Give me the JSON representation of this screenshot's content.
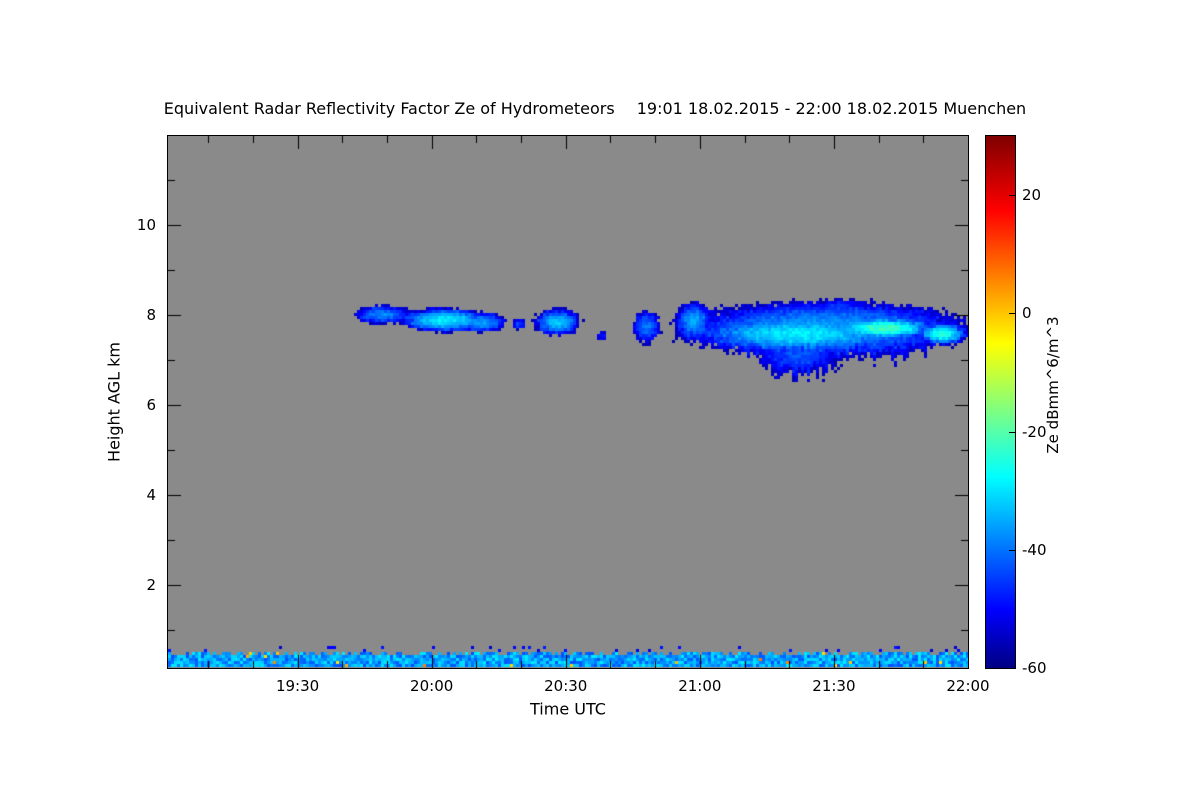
{
  "chart_data": {
    "type": "heatmap",
    "title": "Equivalent Radar Reflectivity Factor Ze of Hydrometeors",
    "subtitle": "19:01 18.02.2015 - 22:00 18.02.2015 Muenchen",
    "xlabel": "Time UTC",
    "ylabel": "Height AGL km",
    "colorbar_label": "Ze dBmm^6/m^3",
    "x_unit": "minutes after 19:00 UTC",
    "x_range_minutes": [
      1,
      180
    ],
    "y_range_km": [
      0.15,
      11.98
    ],
    "background_color": "#8A8A8A",
    "x_ticks": [
      {
        "label": "19:30",
        "t": 30
      },
      {
        "label": "20:00",
        "t": 60
      },
      {
        "label": "20:30",
        "t": 90
      },
      {
        "label": "21:00",
        "t": 120
      },
      {
        "label": "21:30",
        "t": 150
      },
      {
        "label": "22:00",
        "t": 180
      }
    ],
    "x_minor_step_min": 10,
    "y_ticks": [
      {
        "label": "2",
        "h": 2
      },
      {
        "label": "4",
        "h": 4
      },
      {
        "label": "6",
        "h": 6
      },
      {
        "label": "8",
        "h": 8
      },
      {
        "label": "10",
        "h": 10
      }
    ],
    "y_minor_ticks_km": [
      1,
      3,
      5,
      7,
      9,
      11
    ],
    "colorbar": {
      "range": [
        -60,
        30
      ],
      "ticks": [
        {
          "label": "20",
          "v": 20
        },
        {
          "label": "0",
          "v": 0
        },
        {
          "label": "-20",
          "v": -20
        },
        {
          "label": "-40",
          "v": -40
        },
        {
          "label": "-60",
          "v": -60
        }
      ],
      "stops": [
        {
          "pos": 0.0,
          "color": "#000082"
        },
        {
          "pos": 0.11,
          "color": "#0000FF"
        },
        {
          "pos": 0.36,
          "color": "#00FFFF"
        },
        {
          "pos": 0.61,
          "color": "#FFFF00"
        },
        {
          "pos": 0.86,
          "color": "#FF0000"
        },
        {
          "pos": 1.0,
          "color": "#7F0000"
        }
      ]
    },
    "features": {
      "description": "Elevated ice-cloud echo band near 7-8.4 km AGL from ~19:43 to 22:00 UTC with gaps; strongest (green, ~-20 dB) core 21:25-21:55; ragged fall streaks below cloud base ~21:10-21:30; shallow boundary-layer echo band ~0.2-0.55 km across whole period.",
      "cloud_blobs": [
        {
          "t_center_min": 49,
          "h_center_km": 8.02,
          "t_radius_min": 6.5,
          "h_radius_km": 0.22,
          "core_dbz": -38,
          "streak": 0
        },
        {
          "t_center_min": 63,
          "h_center_km": 7.9,
          "t_radius_min": 11,
          "h_radius_km": 0.28,
          "core_dbz": -29,
          "streak": 0
        },
        {
          "t_center_min": 71,
          "h_center_km": 7.85,
          "t_radius_min": 6,
          "h_radius_km": 0.24,
          "core_dbz": -36,
          "streak": 0
        },
        {
          "t_center_min": 79.5,
          "h_center_km": 7.82,
          "t_radius_min": 1.6,
          "h_radius_km": 0.14,
          "core_dbz": -44,
          "streak": 0
        },
        {
          "t_center_min": 88,
          "h_center_km": 7.85,
          "t_radius_min": 5.5,
          "h_radius_km": 0.32,
          "core_dbz": -33,
          "streak": 0
        },
        {
          "t_center_min": 98,
          "h_center_km": 7.55,
          "t_radius_min": 1.1,
          "h_radius_km": 0.12,
          "core_dbz": -47,
          "streak": 0
        },
        {
          "t_center_min": 108,
          "h_center_km": 7.75,
          "t_radius_min": 3.4,
          "h_radius_km": 0.38,
          "core_dbz": -40,
          "streak": 0
        },
        {
          "t_center_min": 118.5,
          "h_center_km": 7.9,
          "t_radius_min": 4.5,
          "h_radius_km": 0.42,
          "core_dbz": -36,
          "streak": 0.4
        },
        {
          "t_center_min": 148,
          "h_center_km": 7.75,
          "t_radius_min": 33,
          "h_radius_km": 0.6,
          "core_dbz": -36,
          "streak": 0.5
        },
        {
          "t_center_min": 142,
          "h_center_km": 7.6,
          "t_radius_min": 26,
          "h_radius_km": 0.4,
          "core_dbz": -29,
          "streak": 0.3
        },
        {
          "t_center_min": 161,
          "h_center_km": 7.72,
          "t_radius_min": 12,
          "h_radius_km": 0.26,
          "core_dbz": -21,
          "streak": 0
        },
        {
          "t_center_min": 174,
          "h_center_km": 7.6,
          "t_radius_min": 6,
          "h_radius_km": 0.26,
          "core_dbz": -25,
          "streak": 0
        },
        {
          "t_center_min": 151,
          "h_center_km": 8.2,
          "t_radius_min": 5,
          "h_radius_km": 0.18,
          "core_dbz": -45,
          "streak": 0
        },
        {
          "t_center_min": 142,
          "h_center_km": 7.15,
          "t_radius_min": 10,
          "h_radius_km": 0.3,
          "core_dbz": -43,
          "streak": 1.3
        }
      ],
      "surface_band": {
        "h_min_km": 0.22,
        "h_max_km": 0.52,
        "mean_dbz": -36,
        "noise_db": 7,
        "speck_layer_top_km": 0.68
      }
    }
  }
}
